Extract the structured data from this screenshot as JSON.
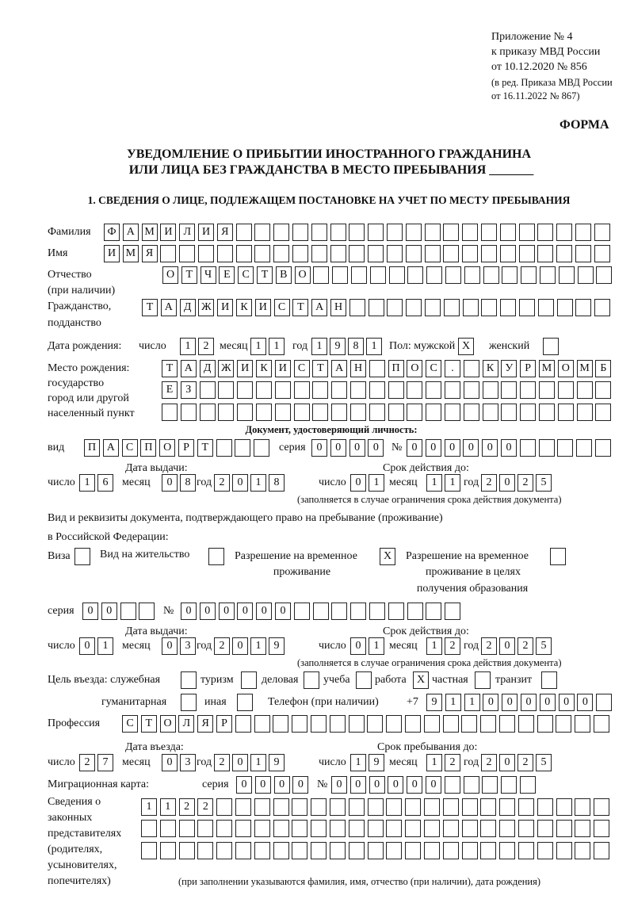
{
  "header": {
    "appendix": [
      "Приложение № 4",
      "к приказу МВД России",
      "от 10.12.2020 № 856"
    ],
    "edition": [
      "(в ред. Приказа МВД России",
      "от 16.11.2022 № 867)"
    ],
    "form_label": "ФОРМА",
    "title_line1": "УВЕДОМЛЕНИЕ О ПРИБЫТИИ ИНОСТРАННОГО ГРАЖДАНИНА",
    "title_line2": "ИЛИ ЛИЦА БЕЗ ГРАЖДАНСТВА В МЕСТО ПРЕБЫВАНИЯ _______",
    "section_title": "1. СВЕДЕНИЯ О ЛИЦЕ, ПОДЛЕЖАЩЕМ ПОСТАНОВКЕ НА УЧЕТ ПО МЕСТУ ПРЕБЫВАНИЯ"
  },
  "labels": {
    "surname": "Фамилия",
    "name": "Имя",
    "patronymic": "Отчество",
    "patronymic_note": "(при наличии)",
    "citizenship": "Гражданство,",
    "citizenship2": "подданство",
    "birth_date": "Дата рождения:",
    "day": "число",
    "month": "месяц",
    "year": "год",
    "sex_male": "Пол: мужской",
    "sex_female": "женский",
    "birth_place": "Место рождения:",
    "birth_place2": "государство",
    "birth_place3": "город или другой",
    "birth_place4": "населенный пункт",
    "id_doc_title": "Документ, удостоверяющий личность:",
    "kind": "вид",
    "series": "серия",
    "number": "№",
    "issue_date": "Дата выдачи:",
    "valid_until": "Срок действия до:",
    "validity_note": "(заполняется в случае ограничения срока действия документа)",
    "stay_doc_line1": "Вид и реквизиты документа, подтверждающего право на пребывание (проживание)",
    "stay_doc_line2": "в Российской Федерации:",
    "visa": "Виза",
    "residence_permit": "Вид на жительство",
    "temp_residence": "Разрешение на временное",
    "temp_residence2": "проживание",
    "temp_residence_edu": "Разрешение на временное",
    "temp_residence_edu2": "проживание в целях",
    "temp_residence_edu3": "получения образования",
    "purpose": "Цель въезда: служебная",
    "tourism": "туризм",
    "business": "деловая",
    "study": "учеба",
    "work": "работа",
    "private": "частная",
    "transit": "транзит",
    "humanitarian": "гуманитарная",
    "other": "иная",
    "phone": "Телефон (при наличии)",
    "phone_prefix": "+7",
    "profession": "Профессия",
    "entry_date": "Дата въезда:",
    "stay_until": "Срок пребывания до:",
    "migration_card": "Миграционная карта:",
    "reps": [
      "Сведения о",
      "законных",
      "представителях",
      "(родителях,",
      "усыновителях,",
      "попечителях)"
    ],
    "reps_note": "(при заполнении указываются фамилия, имя, отчество (при наличии), дата рождения)"
  },
  "fields": {
    "surname": [
      "Ф",
      "А",
      "М",
      "И",
      "Л",
      "И",
      "Я"
    ],
    "name": [
      "И",
      "М",
      "Я"
    ],
    "patronymic": [
      "О",
      "Т",
      "Ч",
      "Е",
      "С",
      "Т",
      "В",
      "О"
    ],
    "citizenship": [
      "Т",
      "А",
      "Д",
      "Ж",
      "И",
      "К",
      "И",
      "С",
      "Т",
      "А",
      "Н"
    ],
    "birth_day": [
      "1",
      "2"
    ],
    "birth_month": [
      "1",
      "1"
    ],
    "birth_year": [
      "1",
      "9",
      "8",
      "1"
    ],
    "sex_male": "X",
    "sex_female": "",
    "birth_place_1": [
      "Т",
      "А",
      "Д",
      "Ж",
      "И",
      "К",
      "И",
      "С",
      "Т",
      "А",
      "Н",
      "",
      "П",
      "О",
      "С",
      ".",
      "",
      "К",
      "У",
      "Р",
      "М",
      "О",
      "М",
      "Б"
    ],
    "birth_place_2": [
      "Е",
      "З"
    ],
    "birth_place_3": [],
    "id_kind": [
      "П",
      "А",
      "С",
      "П",
      "О",
      "Р",
      "Т"
    ],
    "id_series": [
      "0",
      "0",
      "0",
      "0"
    ],
    "id_number": [
      "0",
      "0",
      "0",
      "0",
      "0",
      "0"
    ],
    "id_issue_day": [
      "1",
      "6"
    ],
    "id_issue_month": [
      "0",
      "8"
    ],
    "id_issue_year": [
      "2",
      "0",
      "1",
      "8"
    ],
    "id_valid_day": [
      "0",
      "1"
    ],
    "id_valid_month": [
      "1",
      "1"
    ],
    "id_valid_year": [
      "2",
      "0",
      "2",
      "5"
    ],
    "visa": "",
    "residence_permit": "",
    "temp_residence": "X",
    "temp_residence_edu": "",
    "stay_series": [
      "0",
      "0"
    ],
    "stay_number": [
      "0",
      "0",
      "0",
      "0",
      "0",
      "0"
    ],
    "stay_issue_day": [
      "0",
      "1"
    ],
    "stay_issue_month": [
      "0",
      "3"
    ],
    "stay_issue_year": [
      "2",
      "0",
      "1",
      "9"
    ],
    "stay_valid_day": [
      "0",
      "1"
    ],
    "stay_valid_month": [
      "1",
      "2"
    ],
    "stay_valid_year": [
      "2",
      "0",
      "2",
      "5"
    ],
    "purpose_official": "",
    "purpose_tourism": "",
    "purpose_business": "",
    "purpose_study": "",
    "purpose_work": "X",
    "purpose_private": "",
    "purpose_transit": "",
    "purpose_humanitarian": "",
    "purpose_other": "",
    "phone": [
      "9",
      "1",
      "1",
      "0",
      "0",
      "0",
      "0",
      "0",
      "0"
    ],
    "profession": [
      "С",
      "Т",
      "О",
      "Л",
      "Я",
      "Р"
    ],
    "entry_day": [
      "2",
      "7"
    ],
    "entry_month": [
      "0",
      "3"
    ],
    "entry_year": [
      "2",
      "0",
      "1",
      "9"
    ],
    "stay_until_day": [
      "1",
      "9"
    ],
    "stay_until_month": [
      "1",
      "2"
    ],
    "stay_until_year": [
      "2",
      "0",
      "2",
      "5"
    ],
    "mig_series": [
      "0",
      "0",
      "0",
      "0"
    ],
    "mig_number": [
      "0",
      "0",
      "0",
      "0",
      "0",
      "0"
    ],
    "reps_1": [
      "1",
      "1",
      "2",
      "2"
    ],
    "reps_2": [],
    "reps_3": []
  }
}
